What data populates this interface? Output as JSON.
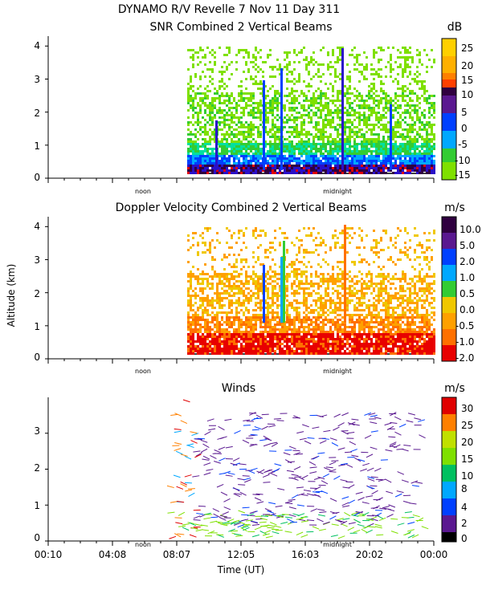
{
  "header": {
    "line1": "DYNAMO R/V Revelle    7 Nov 11 Day 311",
    "panel1_title": "SNR Combined 2 Vertical Beams",
    "panel2_title": "Doppler Velocity Combined 2 Vertical Beams",
    "panel3_title": "Winds"
  },
  "axis": {
    "ylabel": "Altitude (km)",
    "xlabel": "Time (UT)",
    "noon": "noon",
    "midnight": "midnight"
  },
  "colors": {
    "snr": [
      "#7fe000",
      "#33cc33",
      "#00e0a0",
      "#00a8ff",
      "#0040ff",
      "#2a10c8",
      "#5a1890",
      "#300040",
      "#e00000",
      "#ff4000",
      "#ff8000",
      "#ffb000",
      "#ffd000"
    ],
    "doppler": [
      "#e80000",
      "#ff7000",
      "#ffa000",
      "#f0c800",
      "#33cc33",
      "#00a8ff",
      "#0040ff",
      "#5a1890",
      "#300040"
    ],
    "winds": [
      "#000000",
      "#5a1890",
      "#0040ff",
      "#00a8ff",
      "#00c060",
      "#7fe000",
      "#c0e000",
      "#ff8000",
      "#e00000"
    ]
  },
  "chart_data": [
    {
      "type": "heatmap",
      "title": "SNR Combined 2 Vertical Beams",
      "ylabel": "Altitude (km)",
      "ylim": [
        0,
        4.3
      ],
      "yticks": [
        "0",
        "1",
        "2",
        "3",
        "4"
      ],
      "data_start_time": "08:20",
      "colorbar_unit": "dB",
      "colorbar_labels": [
        "25",
        "20",
        "15",
        "10",
        "5",
        "0",
        "-5",
        "-10",
        "-15"
      ]
    },
    {
      "type": "heatmap",
      "title": "Doppler Velocity Combined 2 Vertical Beams",
      "ylabel": "Altitude (km)",
      "ylim": [
        0,
        4.3
      ],
      "yticks": [
        "0",
        "1",
        "2",
        "3",
        "4"
      ],
      "data_start_time": "08:20",
      "colorbar_unit": "m/s",
      "colorbar_labels": [
        "10.0",
        "5.0",
        "2.0",
        "1.0",
        "0.5",
        "0.0",
        "-0.5",
        "-1.0",
        "-2.0"
      ]
    },
    {
      "type": "scatter",
      "title": "Winds",
      "xlabel": "Time (UT)",
      "ylabel": "Altitude (km)",
      "ylim": [
        0,
        4
      ],
      "yticks": [
        "0",
        "1",
        "2",
        "3"
      ],
      "xticks": [
        "00:10",
        "04:08",
        "08:07",
        "12:05",
        "16:03",
        "20:02",
        "00:00"
      ],
      "colorbar_unit": "m/s",
      "colorbar_labels": [
        "30",
        "25",
        "20",
        "15",
        "10",
        "8",
        "4",
        "2",
        "0"
      ]
    }
  ]
}
